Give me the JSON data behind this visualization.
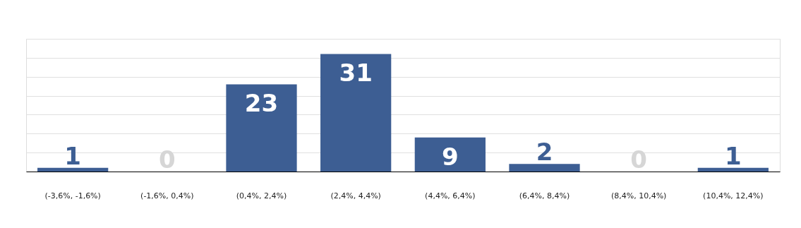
{
  "chart_data": {
    "type": "bar",
    "categories": [
      "(-3,6%, -1,6%)",
      "(-1,6%, 0,4%)",
      "(0,4%, 2,4%)",
      "(2,4%, 4,4%)",
      "(4,4%, 6,4%)",
      "(6,4%, 8,4%)",
      "(8,4%, 10,4%)",
      "(10,4%, 12,4%)"
    ],
    "values": [
      1,
      0,
      23,
      31,
      9,
      2,
      0,
      1
    ],
    "color": "#3d5e93",
    "ylim": [
      0,
      35
    ],
    "grid": "y",
    "tick_labels": "x",
    "data_labels": true
  }
}
